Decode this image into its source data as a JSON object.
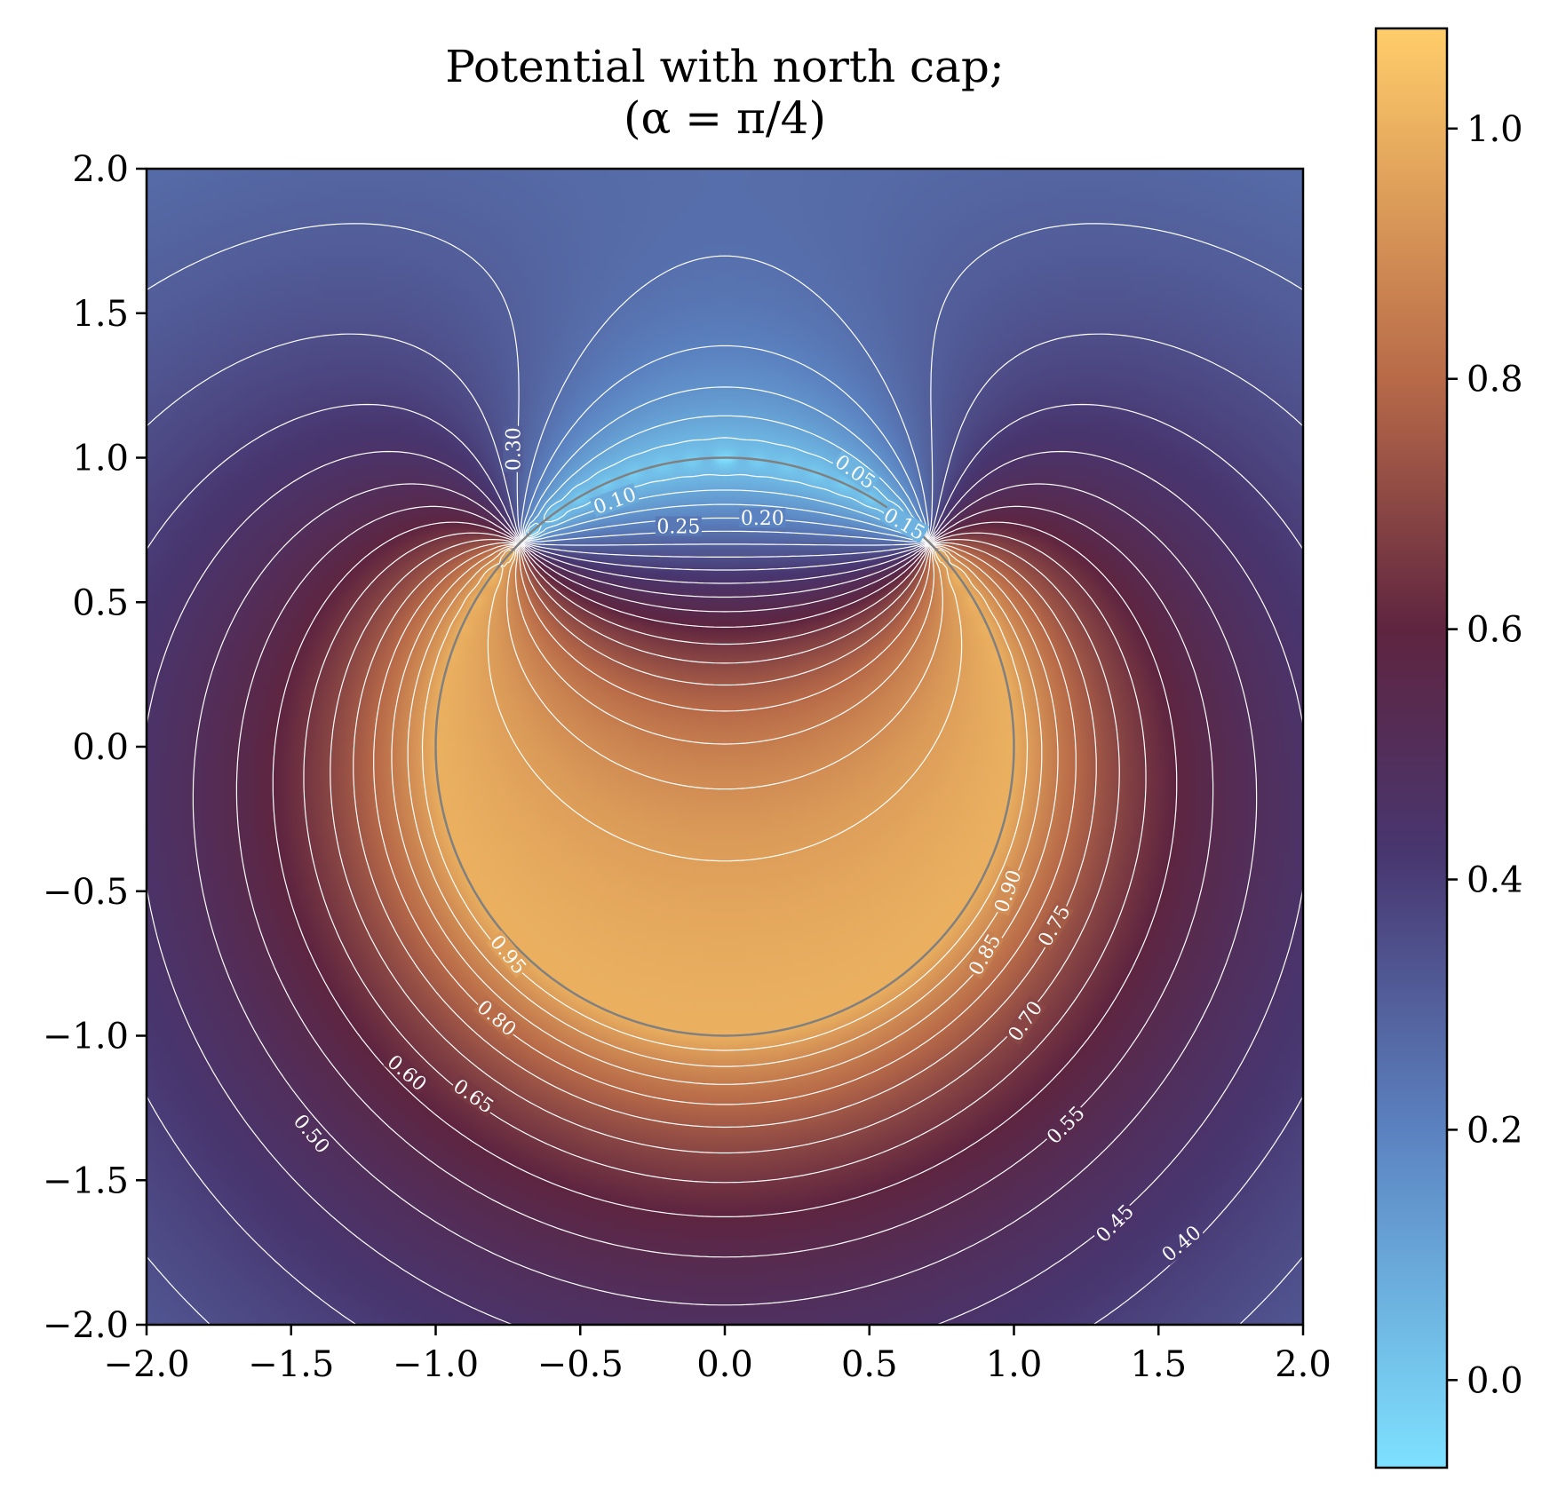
{
  "chart_data": {
    "type": "heatmap",
    "title": "Potential with north cap;",
    "subtitle": "(α = π/4)",
    "xlabel": "",
    "ylabel": "",
    "xlim": [
      -2.0,
      2.0
    ],
    "ylim": [
      -2.0,
      2.0
    ],
    "x_ticks": [
      "−2.0",
      "−1.5",
      "−1.0",
      "−0.5",
      "0.0",
      "0.5",
      "1.0",
      "1.5",
      "2.0"
    ],
    "y_ticks": [
      "2.0",
      "1.5",
      "1.0",
      "0.5",
      "0.0",
      "−0.5",
      "−1.0",
      "−1.5",
      "−2.0"
    ],
    "x_tick_values": [
      -2.0,
      -1.5,
      -1.0,
      -0.5,
      0.0,
      0.5,
      1.0,
      1.5,
      2.0
    ],
    "y_tick_values": [
      2.0,
      1.5,
      1.0,
      0.5,
      0.0,
      -0.5,
      -1.0,
      -1.5,
      -2.0
    ],
    "cap_half_angle_rad": 0.7853981634,
    "sphere_radius": 1.0,
    "colorbar": {
      "range": [
        -0.07,
        1.08
      ],
      "ticks": [
        "0.0",
        "0.2",
        "0.4",
        "0.6",
        "0.8",
        "1.0"
      ],
      "tick_values": [
        0.0,
        0.2,
        0.4,
        0.6,
        0.8,
        1.0
      ],
      "colors": [
        {
          "value": -0.07,
          "color": "#7ee1ff"
        },
        {
          "value": 0.2,
          "color": "#5b82c0"
        },
        {
          "value": 0.42,
          "color": "#483670"
        },
        {
          "value": 0.6,
          "color": "#5f2540"
        },
        {
          "value": 0.8,
          "color": "#b86a48"
        },
        {
          "value": 1.08,
          "color": "#ffcd6a"
        }
      ]
    },
    "contour_levels": [
      0.05,
      0.1,
      0.15,
      0.2,
      0.25,
      0.3,
      0.35,
      0.4,
      0.45,
      0.5,
      0.55,
      0.6,
      0.65,
      0.7,
      0.75,
      0.8,
      0.85,
      0.9,
      0.95
    ],
    "contour_labels": [
      {
        "text": "0.05",
        "x": 0.45,
        "y": 0.95,
        "rot": 35
      },
      {
        "text": "0.10",
        "x": -0.38,
        "y": 0.85,
        "rot": -20
      },
      {
        "text": "0.15",
        "x": 0.62,
        "y": 0.77,
        "rot": 30
      },
      {
        "text": "0.20",
        "x": 0.13,
        "y": 0.79,
        "rot": 0
      },
      {
        "text": "0.25",
        "x": -0.16,
        "y": 0.76,
        "rot": 0
      },
      {
        "text": "0.30",
        "x": -0.73,
        "y": 1.03,
        "rot": -90
      },
      {
        "text": "0.90",
        "x": 0.98,
        "y": -0.5,
        "rot": -70
      },
      {
        "text": "0.75",
        "x": 1.14,
        "y": -0.62,
        "rot": -60
      },
      {
        "text": "0.85",
        "x": 0.9,
        "y": -0.72,
        "rot": -60
      },
      {
        "text": "0.95",
        "x": -0.75,
        "y": -0.72,
        "rot": 50
      },
      {
        "text": "0.80",
        "x": -0.79,
        "y": -0.94,
        "rot": 40
      },
      {
        "text": "0.70",
        "x": 1.04,
        "y": -0.95,
        "rot": -55
      },
      {
        "text": "0.60",
        "x": -1.1,
        "y": -1.13,
        "rot": 40
      },
      {
        "text": "0.65",
        "x": -0.87,
        "y": -1.21,
        "rot": 35
      },
      {
        "text": "0.55",
        "x": 1.18,
        "y": -1.31,
        "rot": -45
      },
      {
        "text": "0.50",
        "x": -1.43,
        "y": -1.34,
        "rot": 50
      },
      {
        "text": "0.45",
        "x": 1.35,
        "y": -1.65,
        "rot": -45
      },
      {
        "text": "0.40",
        "x": 1.58,
        "y": -1.72,
        "rot": -40
      }
    ],
    "contour_color": "#ffffff",
    "sphere_color": "#808080"
  }
}
